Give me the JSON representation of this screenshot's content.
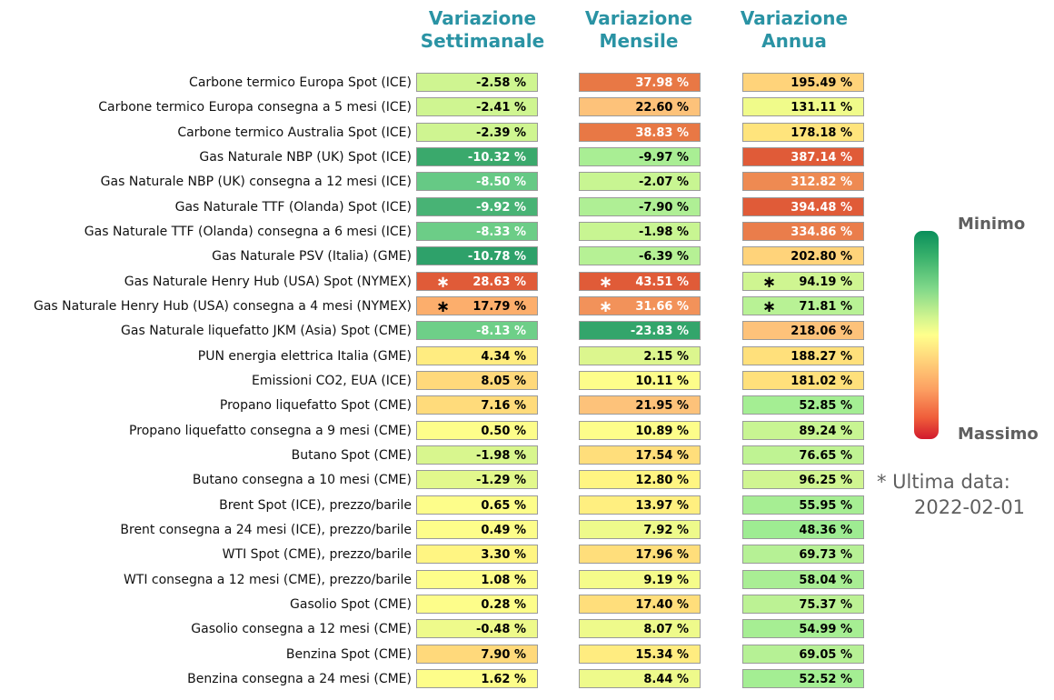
{
  "headers": {
    "weekly": [
      "Variazione",
      "Settimanale"
    ],
    "monthly": [
      "Variazione",
      "Mensile"
    ],
    "annual": [
      "Variazione",
      "Annua"
    ]
  },
  "legend": {
    "min_label": "Minimo",
    "max_label": "Massimo"
  },
  "note": {
    "line1": "* Ultima data:",
    "line2": "2022-02-01"
  },
  "colors": {
    "header": "#2a93a4",
    "scale_min": "#0a8f5b",
    "scale_mid": "#ffff8c",
    "scale_max": "#d11a2d"
  },
  "chart_data": {
    "type": "table",
    "columns": [
      "Variazione Settimanale",
      "Variazione Mensile",
      "Variazione Annua"
    ],
    "rows": [
      {
        "label": "Carbone termico Europa Spot (ICE)",
        "values": [
          "-2.58 %",
          "37.98 %",
          "195.49 %"
        ],
        "colors": [
          "#cff591",
          "#e87845",
          "#ffd37a"
        ],
        "stars": [
          false,
          false,
          false
        ]
      },
      {
        "label": "Carbone termico Europa consegna a 5 mesi (ICE)",
        "values": [
          "-2.41 %",
          "22.60 %",
          "131.11 %"
        ],
        "colors": [
          "#cff591",
          "#fdc27a",
          "#f0fb8a"
        ],
        "stars": [
          false,
          false,
          false
        ]
      },
      {
        "label": "Carbone termico Australia Spot (ICE)",
        "values": [
          "-2.39 %",
          "38.83 %",
          "178.18 %"
        ],
        "colors": [
          "#cff591",
          "#e87845",
          "#ffe47c"
        ],
        "stars": [
          false,
          false,
          false
        ]
      },
      {
        "label": "Gas Naturale NBP (UK) Spot (ICE)",
        "values": [
          "-10.32 %",
          "-9.97 %",
          "387.14 %"
        ],
        "colors": [
          "#3aa96c",
          "#a9ee94",
          "#e05b38"
        ],
        "stars": [
          false,
          false,
          false
        ]
      },
      {
        "label": "Gas Naturale NBP (UK) consegna a 12 mesi (ICE)",
        "values": [
          "-8.50 %",
          "-2.07 %",
          "312.82 %"
        ],
        "colors": [
          "#66c985",
          "#c8f592",
          "#ee8a52"
        ],
        "stars": [
          false,
          false,
          false
        ]
      },
      {
        "label": "Gas Naturale TTF (Olanda) Spot (ICE)",
        "values": [
          "-9.92 %",
          "-7.90 %",
          "394.48 %"
        ],
        "colors": [
          "#48b375",
          "#afef95",
          "#e05b38"
        ],
        "stars": [
          false,
          false,
          false
        ]
      },
      {
        "label": "Gas Naturale TTF (Olanda) consegna a 6 mesi (ICE)",
        "values": [
          "-8.33 %",
          "-1.98 %",
          "334.86 %"
        ],
        "colors": [
          "#6ccd87",
          "#c8f592",
          "#ea7d4b"
        ],
        "stars": [
          false,
          false,
          false
        ]
      },
      {
        "label": "Gas Naturale PSV (Italia) (GME)",
        "values": [
          "-10.78 %",
          "-6.39 %",
          "202.80 %"
        ],
        "colors": [
          "#2ea16a",
          "#b6f195",
          "#ffd37a"
        ],
        "stars": [
          false,
          false,
          false
        ]
      },
      {
        "label": "Gas Naturale Henry Hub (USA) Spot (NYMEX)",
        "values": [
          "28.63 %",
          "43.51 %",
          "94.19 %"
        ],
        "colors": [
          "#e05b38",
          "#e05b38",
          "#cff591"
        ],
        "stars": [
          true,
          true,
          true
        ]
      },
      {
        "label": "Gas Naturale Henry Hub (USA) consegna a 4 mesi (NYMEX)",
        "values": [
          "17.79 %",
          "31.66 %",
          "71.81 %"
        ],
        "colors": [
          "#fcae6c",
          "#f2925a",
          "#b8f295"
        ],
        "stars": [
          true,
          true,
          true
        ]
      },
      {
        "label": "Gas Naturale liquefatto JKM (Asia) Spot (CME)",
        "values": [
          "-8.13 %",
          "-23.83 %",
          "218.06 %"
        ],
        "colors": [
          "#6ecf88",
          "#33a56b",
          "#fdc27a"
        ],
        "stars": [
          false,
          false,
          false
        ]
      },
      {
        "label": "PUN energia elettrica Italia (GME)",
        "values": [
          "4.34 %",
          "2.15 %",
          "188.27 %"
        ],
        "colors": [
          "#ffec80",
          "#dcf68e",
          "#ffe07b"
        ],
        "stars": [
          false,
          false,
          false
        ]
      },
      {
        "label": "Emissioni CO2, EUA (ICE)",
        "values": [
          "8.05 %",
          "10.11 %",
          "181.02 %"
        ],
        "colors": [
          "#ffd97b",
          "#fdfd8a",
          "#ffe07b"
        ],
        "stars": [
          false,
          false,
          false
        ]
      },
      {
        "label": "Propano liquefatto Spot (CME)",
        "values": [
          "7.16 %",
          "21.95 %",
          "52.85 %"
        ],
        "colors": [
          "#ffdb7b",
          "#fdc27a",
          "#a4ee93"
        ],
        "stars": [
          false,
          false,
          false
        ]
      },
      {
        "label": "Propano liquefatto consegna a 9 mesi (CME)",
        "values": [
          "0.50 %",
          "10.89 %",
          "89.24 %"
        ],
        "colors": [
          "#fdfd8a",
          "#fdfd8a",
          "#c8f592"
        ],
        "stars": [
          false,
          false,
          false
        ]
      },
      {
        "label": "Butano Spot (CME)",
        "values": [
          "-1.98 %",
          "17.54 %",
          "76.65 %"
        ],
        "colors": [
          "#d8f68e",
          "#ffde7b",
          "#bff393"
        ],
        "stars": [
          false,
          false,
          false
        ]
      },
      {
        "label": "Butano consegna a 10 mesi (CME)",
        "values": [
          "-1.29 %",
          "12.80 %",
          "96.25 %"
        ],
        "colors": [
          "#e2f88c",
          "#fff582",
          "#d0f591"
        ],
        "stars": [
          false,
          false,
          false
        ]
      },
      {
        "label": "Brent Spot (ICE), prezzo/barile",
        "values": [
          "0.65 %",
          "13.97 %",
          "55.95 %"
        ],
        "colors": [
          "#fdfd8a",
          "#ffef80",
          "#a6ee93"
        ],
        "stars": [
          false,
          false,
          false
        ]
      },
      {
        "label": "Brent consegna a 24 mesi (ICE), prezzo/barile",
        "values": [
          "0.49 %",
          "7.92 %",
          "48.36 %"
        ],
        "colors": [
          "#fdfd8a",
          "#eefa8b",
          "#9eec92"
        ],
        "stars": [
          false,
          false,
          false
        ]
      },
      {
        "label": "WTI Spot (CME), prezzo/barile",
        "values": [
          "3.30 %",
          "17.96 %",
          "69.73 %"
        ],
        "colors": [
          "#fff582",
          "#ffde7b",
          "#b6f195"
        ],
        "stars": [
          false,
          false,
          false
        ]
      },
      {
        "label": "WTI consegna a 12 mesi (CME), prezzo/barile",
        "values": [
          "1.08 %",
          "9.19 %",
          "58.04 %"
        ],
        "colors": [
          "#fdfd8a",
          "#f5fc8a",
          "#a9ee94"
        ],
        "stars": [
          false,
          false,
          false
        ]
      },
      {
        "label": "Gasolio Spot (CME)",
        "values": [
          "0.28 %",
          "17.40 %",
          "75.37 %"
        ],
        "colors": [
          "#fdfd8a",
          "#ffde7b",
          "#bcf294"
        ],
        "stars": [
          false,
          false,
          false
        ]
      },
      {
        "label": "Gasolio consegna a 12 mesi (CME)",
        "values": [
          "-0.48 %",
          "8.07 %",
          "54.99 %"
        ],
        "colors": [
          "#eefa8b",
          "#eefa8b",
          "#a6ee93"
        ],
        "stars": [
          false,
          false,
          false
        ]
      },
      {
        "label": "Benzina Spot (CME)",
        "values": [
          "7.90 %",
          "15.34 %",
          "69.05 %"
        ],
        "colors": [
          "#ffd97b",
          "#ffec80",
          "#b6f195"
        ],
        "stars": [
          false,
          false,
          false
        ]
      },
      {
        "label": "Benzina consegna a 24 mesi (CME)",
        "values": [
          "1.62 %",
          "8.44 %",
          "52.52 %"
        ],
        "colors": [
          "#fdfd8a",
          "#eefa8b",
          "#a4ee93"
        ],
        "stars": [
          false,
          false,
          false
        ]
      }
    ]
  }
}
